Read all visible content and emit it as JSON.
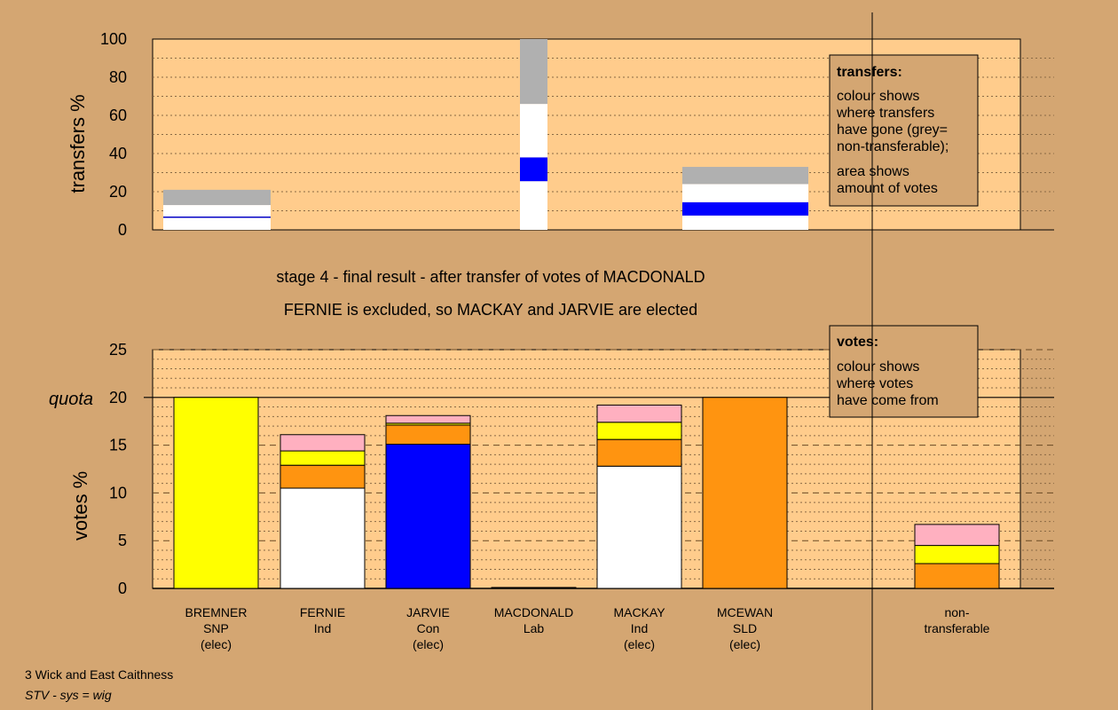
{
  "chart_data": [
    {
      "type": "bar",
      "subtype": "stacked",
      "ylabel": "transfers %",
      "ylim": [
        0,
        100
      ],
      "yticks": [
        0,
        20,
        40,
        60,
        80,
        100
      ],
      "grid": true,
      "legend_box": {
        "title": "transfers:",
        "lines": [
          "colour shows",
          "where transfers",
          "have gone (grey=",
          "non-transferable);"
        ],
        "lines2": [
          "area shows",
          "amount of votes"
        ],
        "placement": "top-right"
      },
      "bars": [
        {
          "category": "BREMNER",
          "segments": [
            {
              "value": 6.3,
              "color": "#ffffff"
            },
            {
              "value": 0.7,
              "color": "#0000c8"
            },
            {
              "value": 6.0,
              "color": "#ffffff"
            },
            {
              "value": 8.0,
              "color": "#b0b0b0"
            }
          ]
        },
        {
          "category": "MACDONALD",
          "segments": [
            {
              "value": 25.5,
              "color": "#ffffff"
            },
            {
              "value": 12.5,
              "color": "#0000ff"
            },
            {
              "value": 28.0,
              "color": "#ffffff"
            },
            {
              "value": 34.0,
              "color": "#b0b0b0"
            }
          ]
        },
        {
          "category": "MACKAY",
          "segments": [
            {
              "value": 7.5,
              "color": "#ffffff"
            },
            {
              "value": 7.0,
              "color": "#0000ff"
            },
            {
              "value": 9.5,
              "color": "#ffffff"
            },
            {
              "value": 9.0,
              "color": "#b0b0b0"
            }
          ]
        }
      ]
    },
    {
      "type": "bar",
      "subtype": "stacked",
      "ylabel": "votes %",
      "ylim": [
        0,
        25
      ],
      "yticks": [
        0,
        5,
        10,
        15,
        20,
        25
      ],
      "quota": {
        "value": 20,
        "label": "quota"
      },
      "grid": true,
      "legend_box": {
        "title": "votes:",
        "lines": [
          "colour shows",
          "where votes",
          "have come from"
        ],
        "placement": "top-right"
      },
      "categories": [
        {
          "name": "BREMNER",
          "party": "SNP",
          "status": "(elec)"
        },
        {
          "name": "FERNIE",
          "party": "Ind",
          "status": ""
        },
        {
          "name": "JARVIE",
          "party": "Con",
          "status": "(elec)"
        },
        {
          "name": "MACDONALD",
          "party": "Lab",
          "status": ""
        },
        {
          "name": "MACKAY",
          "party": "Ind",
          "status": "(elec)"
        },
        {
          "name": "MCEWAN",
          "party": "SLD",
          "status": "(elec)"
        },
        {
          "name": "non-",
          "party": "transferable",
          "status": ""
        }
      ],
      "bars": [
        {
          "category": "BREMNER",
          "segments": [
            {
              "value": 20.0,
              "color": "#ffff00"
            }
          ]
        },
        {
          "category": "FERNIE",
          "segments": [
            {
              "value": 10.5,
              "color": "#ffffff"
            },
            {
              "value": 2.4,
              "color": "#ff9410"
            },
            {
              "value": 1.5,
              "color": "#ffff00"
            },
            {
              "value": 1.7,
              "color": "#ffb0c0"
            }
          ]
        },
        {
          "category": "JARVIE",
          "segments": [
            {
              "value": 15.1,
              "color": "#0000ff"
            },
            {
              "value": 2.0,
              "color": "#ff9410"
            },
            {
              "value": 0.2,
              "color": "#ffff00"
            },
            {
              "value": 0.8,
              "color": "#ffb0c0"
            }
          ]
        },
        {
          "category": "MACDONALD",
          "segments": [
            {
              "value": 0.1,
              "color": "#000000"
            }
          ]
        },
        {
          "category": "MACKAY",
          "segments": [
            {
              "value": 12.8,
              "color": "#ffffff"
            },
            {
              "value": 2.8,
              "color": "#ff9410"
            },
            {
              "value": 1.8,
              "color": "#ffff00"
            },
            {
              "value": 1.8,
              "color": "#ffb0c0"
            }
          ]
        },
        {
          "category": "MCEWAN",
          "segments": [
            {
              "value": 20.0,
              "color": "#ff9410"
            }
          ]
        },
        {
          "category": "non-transferable",
          "segments": [
            {
              "value": 2.6,
              "color": "#ff9410"
            },
            {
              "value": 1.9,
              "color": "#ffff00"
            },
            {
              "value": 2.2,
              "color": "#ffb0c0"
            }
          ]
        }
      ]
    }
  ],
  "caption": {
    "line1": "stage 4 - final result - after transfer of votes of MACDONALD",
    "line2": "FERNIE is excluded, so MACKAY and JARVIE are elected"
  },
  "footer": {
    "constituency": "3 Wick and East Caithness",
    "system": "STV - sys = wig"
  },
  "colors": {
    "background": "#d4a672",
    "plot_area": "#ffcc8c",
    "legend_box": "#d4a672"
  }
}
